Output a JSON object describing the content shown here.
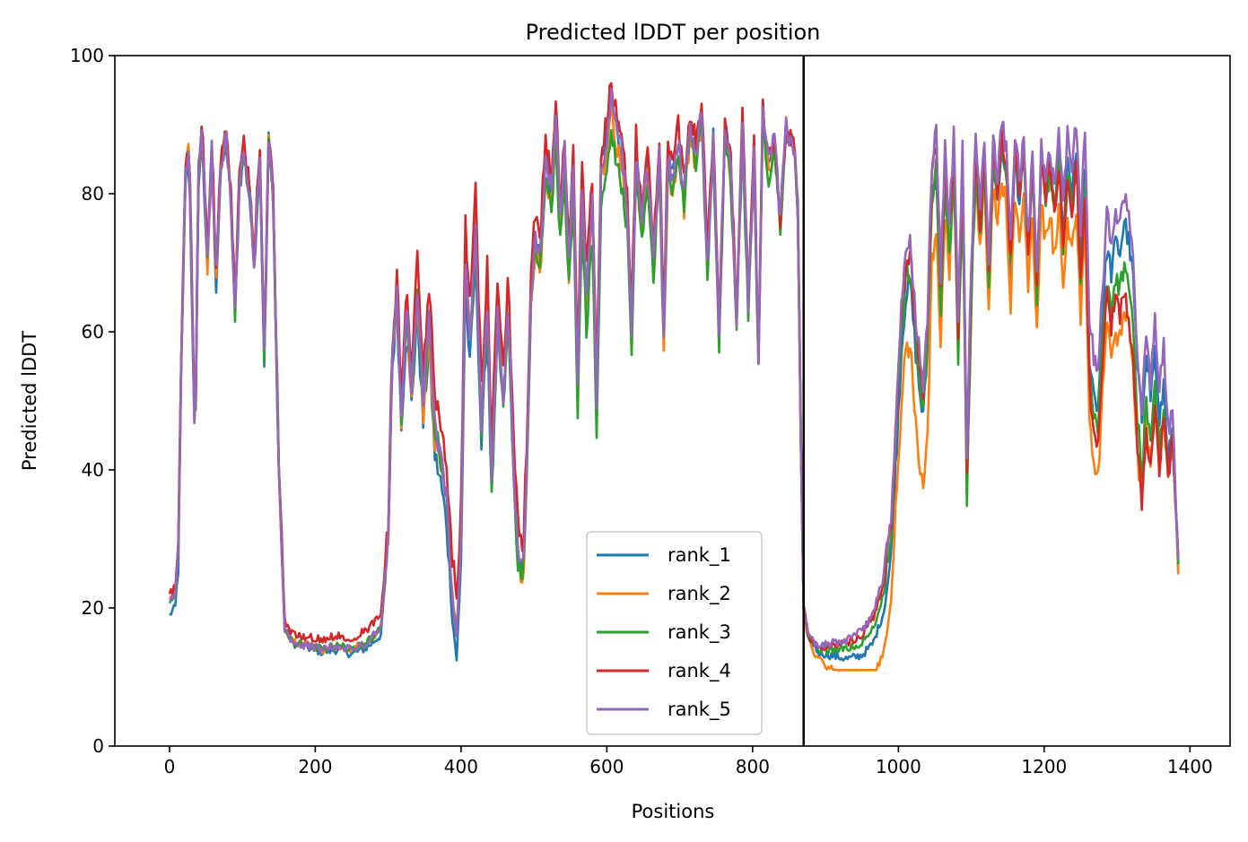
{
  "chart_data": {
    "type": "line",
    "title": "Predicted lDDT per position",
    "xlabel": "Positions",
    "ylabel": "Predicted lDDT",
    "xlim": [
      -75,
      1455
    ],
    "ylim": [
      0,
      100
    ],
    "xticks": [
      0,
      200,
      400,
      600,
      800,
      1000,
      1200,
      1400
    ],
    "yticks": [
      0,
      20,
      40,
      60,
      80,
      100
    ],
    "xtick_labels": [
      "0",
      "200",
      "400",
      "600",
      "800",
      "1000",
      "1200",
      "1400"
    ],
    "ytick_labels": [
      "0",
      "20",
      "40",
      "60",
      "80",
      "100"
    ],
    "grid": false,
    "legend_position": "lower-center",
    "chain_break_x": 870,
    "chain_break_color": "#000000",
    "x_end": 1385,
    "base_profile": [
      [
        0,
        21
      ],
      [
        8,
        22
      ],
      [
        12,
        28
      ],
      [
        16,
        55
      ],
      [
        22,
        84
      ],
      [
        27,
        86
      ],
      [
        32,
        60
      ],
      [
        35,
        42
      ],
      [
        40,
        84
      ],
      [
        45,
        89
      ],
      [
        52,
        70
      ],
      [
        58,
        86
      ],
      [
        64,
        68
      ],
      [
        70,
        84
      ],
      [
        78,
        88
      ],
      [
        84,
        80
      ],
      [
        90,
        63
      ],
      [
        96,
        82
      ],
      [
        102,
        86
      ],
      [
        110,
        80
      ],
      [
        116,
        70
      ],
      [
        124,
        86
      ],
      [
        130,
        56
      ],
      [
        136,
        88
      ],
      [
        142,
        80
      ],
      [
        150,
        40
      ],
      [
        158,
        17
      ],
      [
        170,
        15
      ],
      [
        190,
        14.5
      ],
      [
        210,
        14
      ],
      [
        230,
        14.5
      ],
      [
        250,
        14
      ],
      [
        270,
        15
      ],
      [
        290,
        17
      ],
      [
        300,
        30
      ],
      [
        305,
        55
      ],
      [
        312,
        66
      ],
      [
        318,
        48
      ],
      [
        325,
        63
      ],
      [
        332,
        52
      ],
      [
        340,
        66
      ],
      [
        348,
        50
      ],
      [
        356,
        62
      ],
      [
        364,
        46
      ],
      [
        372,
        42
      ],
      [
        380,
        36
      ],
      [
        388,
        22
      ],
      [
        394,
        16
      ],
      [
        400,
        30
      ],
      [
        406,
        70
      ],
      [
        412,
        58
      ],
      [
        420,
        74
      ],
      [
        428,
        46
      ],
      [
        436,
        64
      ],
      [
        442,
        38
      ],
      [
        450,
        62
      ],
      [
        458,
        50
      ],
      [
        465,
        64
      ],
      [
        472,
        40
      ],
      [
        478,
        28
      ],
      [
        485,
        25
      ],
      [
        490,
        40
      ],
      [
        496,
        66
      ],
      [
        502,
        74
      ],
      [
        508,
        70
      ],
      [
        516,
        85
      ],
      [
        524,
        80
      ],
      [
        530,
        91
      ],
      [
        536,
        76
      ],
      [
        542,
        86
      ],
      [
        548,
        70
      ],
      [
        554,
        84
      ],
      [
        560,
        52
      ],
      [
        566,
        82
      ],
      [
        572,
        66
      ],
      [
        580,
        80
      ],
      [
        586,
        50
      ],
      [
        592,
        84
      ],
      [
        600,
        88
      ],
      [
        606,
        94
      ],
      [
        612,
        90
      ],
      [
        620,
        86
      ],
      [
        628,
        78
      ],
      [
        634,
        60
      ],
      [
        640,
        86
      ],
      [
        648,
        76
      ],
      [
        656,
        84
      ],
      [
        664,
        70
      ],
      [
        672,
        86
      ],
      [
        678,
        60
      ],
      [
        684,
        86
      ],
      [
        690,
        82
      ],
      [
        698,
        88
      ],
      [
        706,
        80
      ],
      [
        714,
        90
      ],
      [
        722,
        86
      ],
      [
        730,
        92
      ],
      [
        738,
        70
      ],
      [
        746,
        88
      ],
      [
        754,
        60
      ],
      [
        762,
        90
      ],
      [
        770,
        84
      ],
      [
        778,
        62
      ],
      [
        786,
        90
      ],
      [
        794,
        64
      ],
      [
        802,
        86
      ],
      [
        808,
        56
      ],
      [
        814,
        92
      ],
      [
        822,
        84
      ],
      [
        830,
        88
      ],
      [
        838,
        76
      ],
      [
        846,
        90
      ],
      [
        852,
        88
      ],
      [
        858,
        86
      ],
      [
        862,
        78
      ],
      [
        866,
        45
      ],
      [
        870,
        20
      ],
      [
        876,
        16
      ],
      [
        890,
        14
      ],
      [
        910,
        14
      ],
      [
        930,
        14
      ],
      [
        950,
        15
      ],
      [
        965,
        17
      ],
      [
        980,
        22
      ],
      [
        990,
        30
      ],
      [
        997,
        45
      ],
      [
        1004,
        60
      ],
      [
        1010,
        68
      ],
      [
        1016,
        70
      ],
      [
        1022,
        62
      ],
      [
        1028,
        55
      ],
      [
        1034,
        50
      ],
      [
        1040,
        60
      ],
      [
        1046,
        82
      ],
      [
        1052,
        86
      ],
      [
        1058,
        66
      ],
      [
        1064,
        84
      ],
      [
        1070,
        74
      ],
      [
        1076,
        86
      ],
      [
        1082,
        60
      ],
      [
        1088,
        84
      ],
      [
        1094,
        40
      ],
      [
        1100,
        68
      ],
      [
        1106,
        86
      ],
      [
        1112,
        76
      ],
      [
        1118,
        86
      ],
      [
        1124,
        68
      ],
      [
        1130,
        86
      ],
      [
        1136,
        80
      ],
      [
        1142,
        88
      ],
      [
        1148,
        84
      ],
      [
        1154,
        70
      ],
      [
        1160,
        86
      ],
      [
        1166,
        80
      ],
      [
        1172,
        86
      ],
      [
        1178,
        72
      ],
      [
        1184,
        84
      ],
      [
        1190,
        66
      ],
      [
        1196,
        86
      ],
      [
        1202,
        80
      ],
      [
        1208,
        84
      ],
      [
        1214,
        78
      ],
      [
        1220,
        86
      ],
      [
        1226,
        74
      ],
      [
        1232,
        84
      ],
      [
        1238,
        80
      ],
      [
        1244,
        86
      ],
      [
        1250,
        70
      ],
      [
        1256,
        84
      ],
      [
        1262,
        56
      ],
      [
        1268,
        50
      ],
      [
        1274,
        48
      ],
      [
        1280,
        60
      ],
      [
        1286,
        70
      ],
      [
        1292,
        66
      ],
      [
        1298,
        70
      ],
      [
        1304,
        68
      ],
      [
        1310,
        72
      ],
      [
        1316,
        68
      ],
      [
        1322,
        62
      ],
      [
        1328,
        48
      ],
      [
        1334,
        40
      ],
      [
        1340,
        50
      ],
      [
        1346,
        44
      ],
      [
        1352,
        52
      ],
      [
        1358,
        42
      ],
      [
        1364,
        50
      ],
      [
        1370,
        40
      ],
      [
        1376,
        45
      ],
      [
        1385,
        24
      ]
    ],
    "series": [
      {
        "name": "rank_1",
        "color": "#1f77b4",
        "offsets": [
          [
            0,
            -2
          ],
          [
            150,
            0
          ],
          [
            300,
            -1
          ],
          [
            360,
            -4
          ],
          [
            420,
            -3
          ],
          [
            500,
            0
          ],
          [
            700,
            0
          ],
          [
            870,
            0
          ],
          [
            1000,
            -3
          ],
          [
            1150,
            -1
          ],
          [
            1250,
            0
          ],
          [
            1300,
            3
          ],
          [
            1340,
            8
          ],
          [
            1385,
            -2
          ]
        ]
      },
      {
        "name": "rank_2",
        "color": "#ff7f0e",
        "offsets": [
          [
            0,
            0
          ],
          [
            150,
            0
          ],
          [
            300,
            0
          ],
          [
            360,
            -2
          ],
          [
            420,
            2
          ],
          [
            500,
            -2
          ],
          [
            700,
            -2
          ],
          [
            870,
            0
          ],
          [
            1000,
            -10
          ],
          [
            1040,
            -14
          ],
          [
            1080,
            -2
          ],
          [
            1150,
            -6
          ],
          [
            1250,
            -8
          ],
          [
            1300,
            -10
          ],
          [
            1340,
            -4
          ],
          [
            1385,
            0
          ]
        ]
      },
      {
        "name": "rank_3",
        "color": "#2ca02c",
        "offsets": [
          [
            0,
            0
          ],
          [
            150,
            0
          ],
          [
            300,
            0
          ],
          [
            360,
            0
          ],
          [
            420,
            -1
          ],
          [
            500,
            -1
          ],
          [
            580,
            -6
          ],
          [
            700,
            -1
          ],
          [
            800,
            -2
          ],
          [
            870,
            0
          ],
          [
            1000,
            0
          ],
          [
            1090,
            -4
          ],
          [
            1150,
            0
          ],
          [
            1250,
            -2
          ],
          [
            1300,
            -2
          ],
          [
            1340,
            0
          ],
          [
            1385,
            0
          ]
        ]
      },
      {
        "name": "rank_4",
        "color": "#d62728",
        "offsets": [
          [
            0,
            1
          ],
          [
            150,
            1
          ],
          [
            300,
            2
          ],
          [
            360,
            5
          ],
          [
            420,
            6
          ],
          [
            500,
            3
          ],
          [
            700,
            2
          ],
          [
            870,
            0
          ],
          [
            1000,
            2
          ],
          [
            1100,
            0
          ],
          [
            1200,
            0
          ],
          [
            1270,
            -4
          ],
          [
            1320,
            -6
          ],
          [
            1385,
            0
          ]
        ]
      },
      {
        "name": "rank_5",
        "color": "#9467bd",
        "offsets": [
          [
            0,
            0
          ],
          [
            150,
            0
          ],
          [
            300,
            0
          ],
          [
            360,
            0
          ],
          [
            420,
            0
          ],
          [
            500,
            0
          ],
          [
            700,
            0
          ],
          [
            870,
            0
          ],
          [
            1000,
            3
          ],
          [
            1100,
            2
          ],
          [
            1200,
            2
          ],
          [
            1260,
            6
          ],
          [
            1320,
            8
          ],
          [
            1360,
            10
          ],
          [
            1385,
            0
          ]
        ]
      }
    ]
  }
}
